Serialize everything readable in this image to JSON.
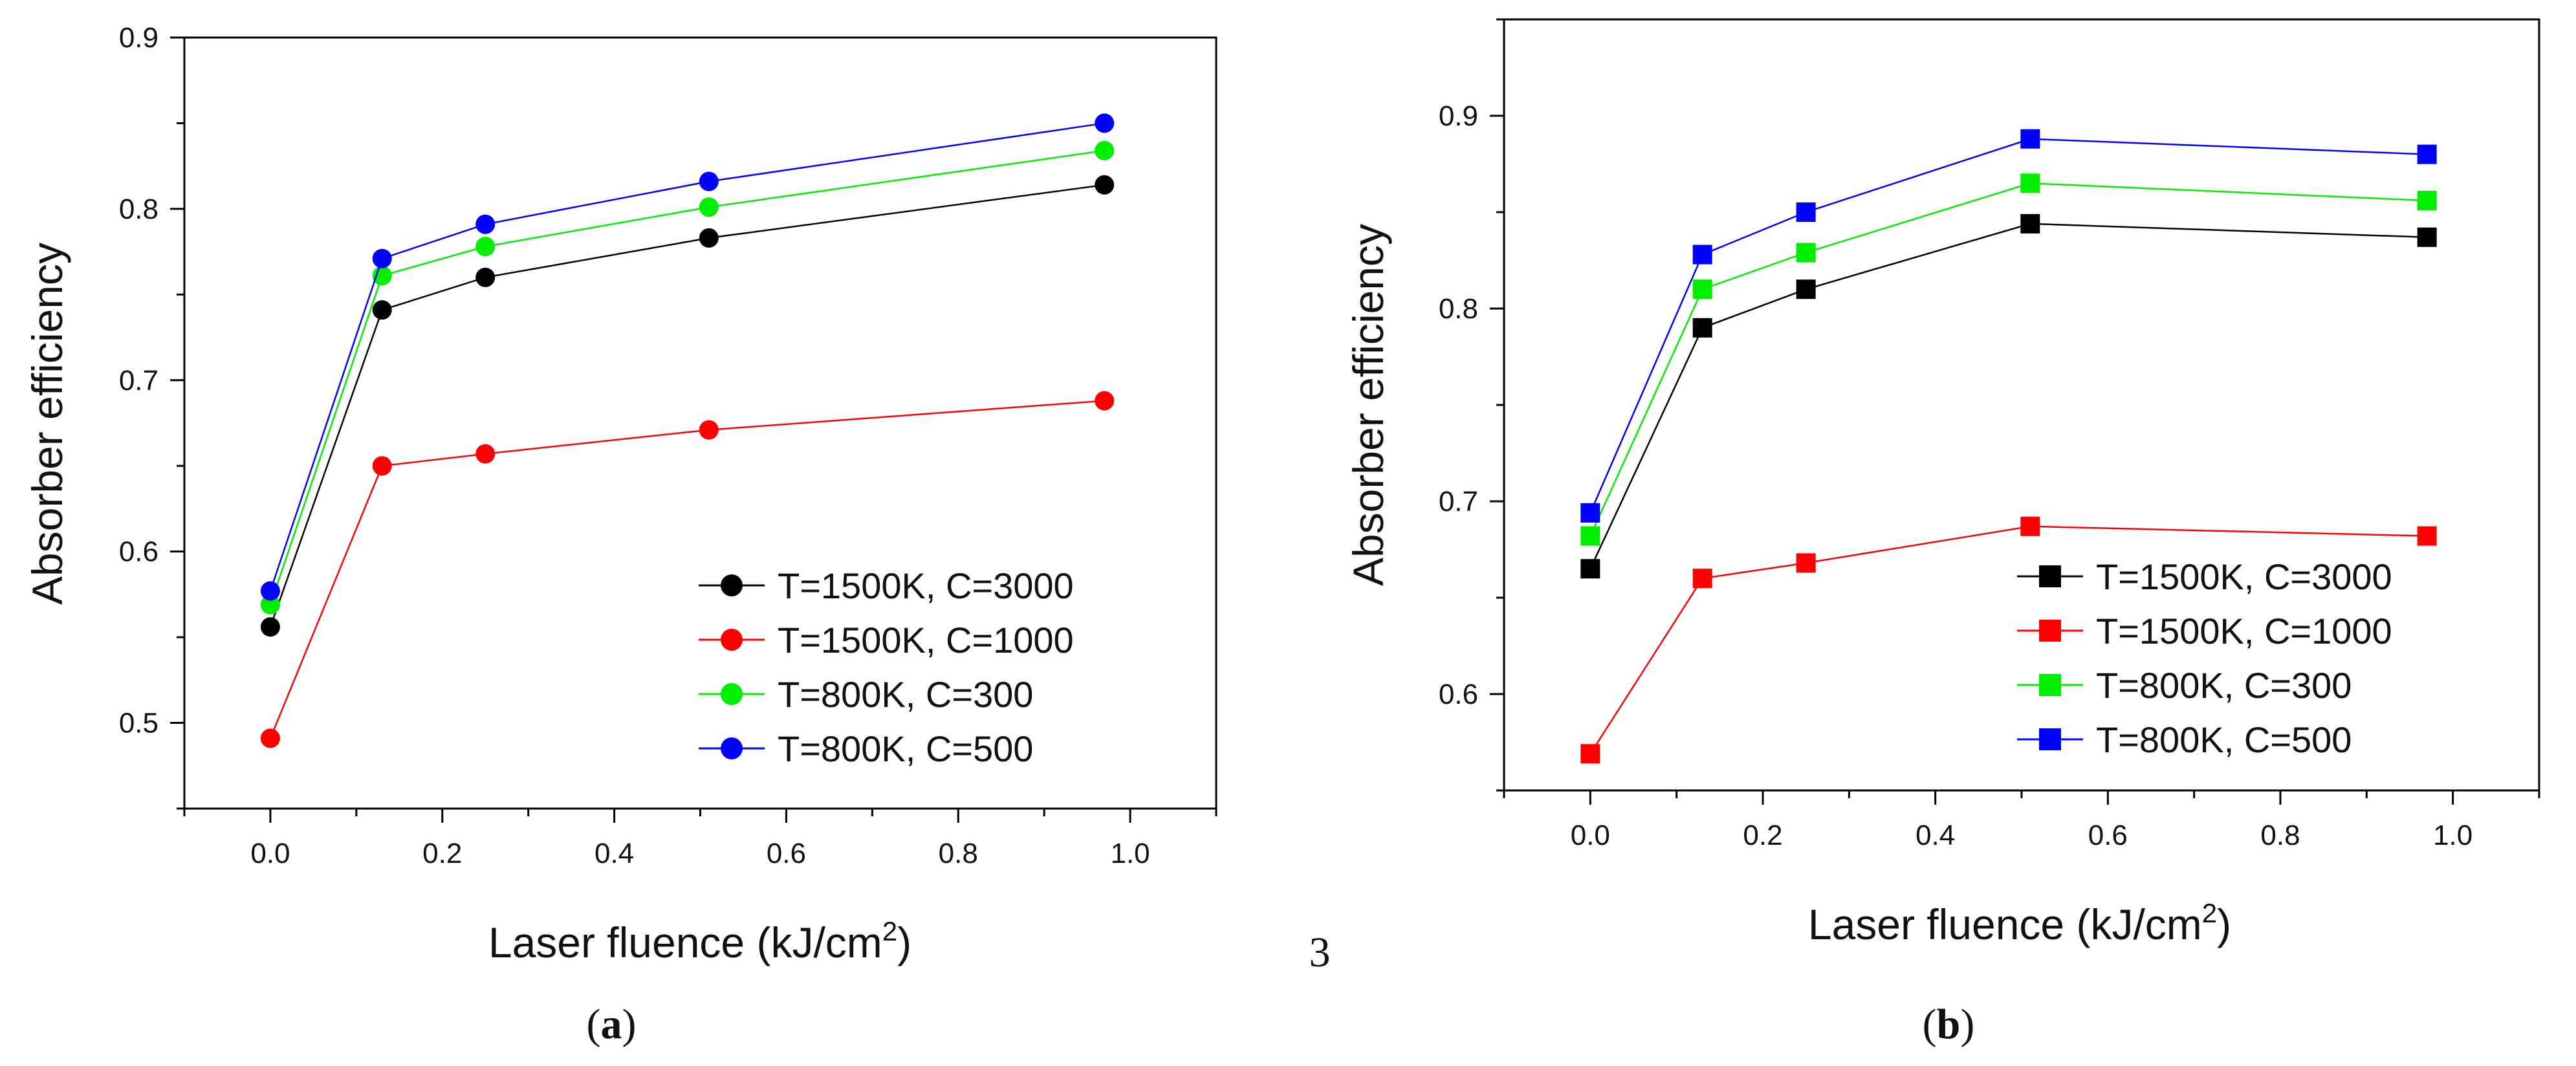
{
  "stray_page_number": "3",
  "chart_data": [
    {
      "type": "line",
      "panel_label": "a",
      "title": "",
      "xlabel": "Laser fluence (kJ/cm",
      "xlabel_sup": "2",
      "xlabel_close": ")",
      "ylabel": "Absorber efficiency",
      "xlim": [
        -0.1,
        1.1
      ],
      "ylim": [
        0.45,
        0.9
      ],
      "x_ticks": [
        0.0,
        0.2,
        0.4,
        0.6,
        0.8,
        1.0
      ],
      "x_tick_labels": [
        "0.0",
        "0.2",
        "0.4",
        "0.6",
        "0.8",
        "1.0"
      ],
      "y_ticks": [
        0.5,
        0.6,
        0.7,
        0.8,
        0.9
      ],
      "y_tick_labels": [
        "0.5",
        "0.6",
        "0.7",
        "0.8",
        "0.9"
      ],
      "marker": "circle",
      "legend_position": "bottom-right",
      "x": [
        0.0,
        0.13,
        0.25,
        0.51,
        0.97
      ],
      "series": [
        {
          "name": "T=1500K, C=3000",
          "color": "#000000",
          "values": [
            0.556,
            0.741,
            0.76,
            0.783,
            0.814
          ]
        },
        {
          "name": "T=1500K, C=1000",
          "color": "#ff0000",
          "values": [
            0.491,
            0.65,
            0.657,
            0.671,
            0.688
          ]
        },
        {
          "name": "T=800K, C=300",
          "color": "#00ee00",
          "values": [
            0.569,
            0.761,
            0.778,
            0.801,
            0.834
          ]
        },
        {
          "name": "T=800K, C=500",
          "color": "#0000ff",
          "values": [
            0.577,
            0.771,
            0.791,
            0.816,
            0.85
          ]
        }
      ]
    },
    {
      "type": "line",
      "panel_label": "b",
      "title": "",
      "xlabel": "Laser fluence (kJ/cm",
      "xlabel_sup": "2",
      "xlabel_close": ")",
      "ylabel": "Absorber efficiency",
      "xlim": [
        -0.1,
        1.1
      ],
      "ylim": [
        0.55,
        0.95
      ],
      "x_ticks": [
        0.0,
        0.2,
        0.4,
        0.6,
        0.8,
        1.0
      ],
      "x_tick_labels": [
        "0.0",
        "0.2",
        "0.4",
        "0.6",
        "0.8",
        "1.0"
      ],
      "y_ticks": [
        0.6,
        0.7,
        0.8,
        0.9
      ],
      "y_tick_labels": [
        "0.6",
        "0.7",
        "0.8",
        "0.9"
      ],
      "marker": "square",
      "legend_position": "bottom-right",
      "x": [
        0.0,
        0.13,
        0.25,
        0.51,
        0.97
      ],
      "series": [
        {
          "name": "T=1500K, C=3000",
          "color": "#000000",
          "values": [
            0.665,
            0.79,
            0.81,
            0.844,
            0.837
          ]
        },
        {
          "name": "T=1500K, C=1000",
          "color": "#ff0000",
          "values": [
            0.569,
            0.66,
            0.668,
            0.687,
            0.682
          ]
        },
        {
          "name": "T=800K, C=300",
          "color": "#00ee00",
          "values": [
            0.682,
            0.81,
            0.829,
            0.865,
            0.856
          ]
        },
        {
          "name": "T=800K, C=500",
          "color": "#0000ff",
          "values": [
            0.694,
            0.828,
            0.85,
            0.888,
            0.88
          ]
        }
      ]
    }
  ]
}
